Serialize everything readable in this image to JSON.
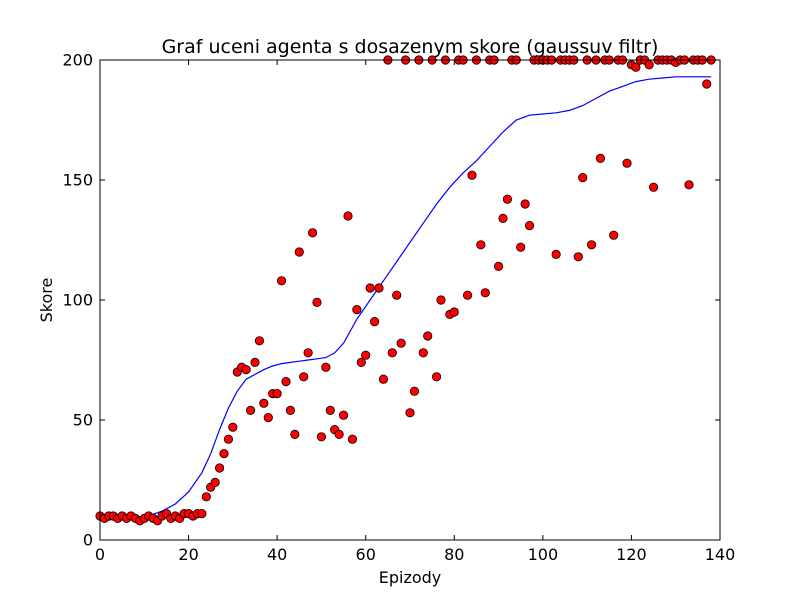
{
  "chart_data": {
    "type": "scatter",
    "title": "Graf uceni agenta s dosazenym skore (gaussuv filtr)",
    "xlabel": "Epizody",
    "ylabel": "Skore",
    "xlim": [
      0,
      140
    ],
    "ylim": [
      0,
      200
    ],
    "xticks": [
      0,
      20,
      40,
      60,
      80,
      100,
      120,
      140
    ],
    "yticks": [
      0,
      50,
      100,
      150,
      200
    ],
    "grid": false,
    "colors": {
      "points": "#ff0000",
      "point_edge": "#000000",
      "line": "#0000ff"
    },
    "series": [
      {
        "kind": "points",
        "x": [
          0,
          1,
          2,
          3,
          4,
          5,
          6,
          7,
          8,
          9,
          10,
          11,
          12,
          13,
          14,
          15,
          16,
          17,
          18,
          19,
          20,
          21,
          22,
          23,
          24,
          25,
          26,
          27,
          28,
          29,
          30,
          31,
          32,
          33,
          34,
          35,
          36,
          37,
          38,
          39,
          40,
          41,
          42,
          43,
          44,
          45,
          46,
          47,
          48,
          49,
          50,
          51,
          52,
          53,
          54,
          55,
          56,
          57,
          58,
          59,
          60,
          61,
          62,
          63,
          64,
          65,
          66,
          67,
          68,
          69,
          70,
          71,
          72,
          73,
          74,
          75,
          76,
          77,
          78,
          79,
          80,
          81,
          82,
          83,
          84,
          85,
          86,
          87,
          88,
          89,
          90,
          91,
          92,
          93,
          94,
          95,
          96,
          97,
          98,
          99,
          100,
          101,
          102,
          103,
          104,
          105,
          106,
          107,
          108,
          109,
          110,
          111,
          112,
          113,
          114,
          115,
          116,
          117,
          118,
          119,
          120,
          121,
          122,
          123,
          124,
          125,
          126,
          127,
          128,
          129,
          130,
          131,
          132,
          133,
          134,
          135,
          136,
          137,
          138
        ],
        "y": [
          10,
          9,
          10,
          10,
          9,
          10,
          9,
          10,
          9,
          8,
          9,
          10,
          9,
          8,
          10,
          11,
          9,
          10,
          9,
          11,
          11,
          10,
          11,
          11,
          18,
          22,
          24,
          30,
          36,
          42,
          47,
          70,
          72,
          71,
          54,
          74,
          83,
          57,
          51,
          61,
          61,
          108,
          66,
          54,
          44,
          120,
          68,
          78,
          128,
          99,
          43,
          72,
          54,
          46,
          44,
          52,
          135,
          42,
          96,
          74,
          77,
          105,
          91,
          105,
          67,
          200,
          78,
          102,
          82,
          200,
          53,
          62,
          200,
          78,
          85,
          200,
          68,
          100,
          200,
          94,
          95,
          200,
          200,
          102,
          152,
          200,
          123,
          103,
          200,
          200,
          114,
          134,
          142,
          200,
          200,
          122,
          140,
          131,
          200,
          200,
          200,
          200,
          200,
          119,
          200,
          200,
          200,
          200,
          118,
          151,
          200,
          123,
          200,
          159,
          200,
          200,
          127,
          200,
          200,
          157,
          198,
          197,
          200,
          200,
          198,
          147,
          200,
          200,
          200,
          200,
          199,
          200,
          200,
          148,
          200,
          200,
          200,
          190,
          200
        ]
      },
      {
        "kind": "line",
        "x": [
          0,
          5,
          10,
          14,
          17,
          20,
          23,
          25,
          27,
          29,
          31,
          33,
          35,
          37,
          39,
          41,
          43,
          45,
          47,
          49,
          51,
          53,
          55,
          58,
          61,
          64,
          67,
          70,
          73,
          76,
          79,
          82,
          85,
          88,
          91,
          94,
          97,
          100,
          103,
          106,
          109,
          112,
          115,
          118,
          121,
          124,
          127,
          130,
          133,
          135,
          138
        ],
        "y": [
          10,
          9.5,
          9.5,
          12,
          15,
          20,
          28,
          36,
          46,
          55,
          62,
          67,
          69,
          71,
          72.5,
          73.5,
          74,
          74.5,
          75,
          75.5,
          76,
          78,
          82,
          92,
          100,
          108,
          116,
          124,
          132,
          140,
          147,
          153,
          158,
          164,
          170,
          175,
          177,
          177.5,
          178,
          179,
          181,
          184,
          187,
          189,
          191,
          192,
          192.5,
          193,
          193,
          193,
          193
        ]
      }
    ]
  }
}
